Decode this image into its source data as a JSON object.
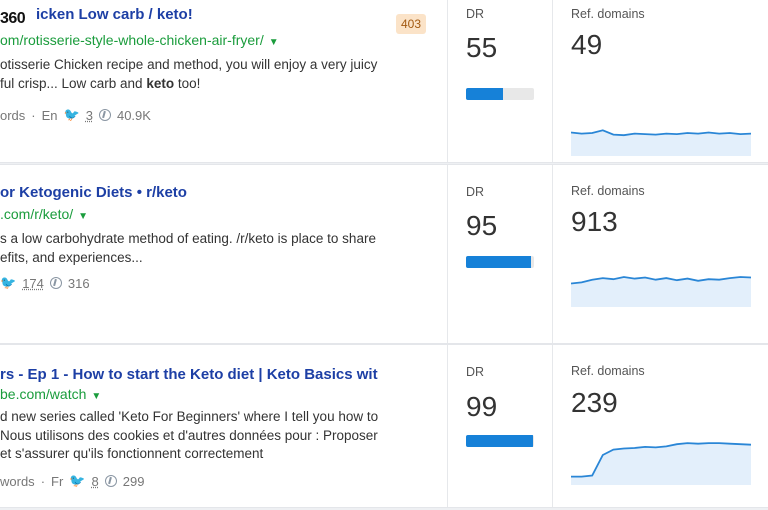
{
  "logo_text": "360",
  "results": [
    {
      "title": "icken Low carb / keto!",
      "url": "om/rotisserie-style-whole-chicken-air-fryer/",
      "snippet_lines": [
        "otisserie Chicken recipe and method, you will enjoy a very juicy",
        "ful crisp... Low carb and keto too!"
      ],
      "meta": {
        "words": "ords",
        "lang": "En",
        "tweets": "3",
        "pins": "40.9K"
      },
      "badge": "403",
      "dr_label": "DR",
      "dr_value": "55",
      "dr_fill": 0.55,
      "ref_label": "Ref. domains",
      "ref_value": "49",
      "spark": [
        0.38,
        0.36,
        0.37,
        0.42,
        0.34,
        0.33,
        0.36,
        0.35,
        0.34,
        0.36,
        0.35,
        0.37,
        0.36,
        0.38,
        0.36,
        0.37,
        0.35,
        0.36
      ]
    },
    {
      "title": "or Ketogenic Diets • r/keto",
      "url": ".com/r/keto/",
      "snippet_lines": [
        "s a low carbohydrate method of eating. /r/keto is place to share",
        "efits, and experiences..."
      ],
      "meta": {
        "words": "",
        "lang": "",
        "tweets": "174",
        "pins": "316"
      },
      "badge": "",
      "dr_label": "DR",
      "dr_value": "95",
      "dr_fill": 0.95,
      "ref_label": "Ref. domains",
      "ref_value": "913",
      "spark": [
        0.38,
        0.4,
        0.45,
        0.48,
        0.46,
        0.5,
        0.47,
        0.49,
        0.45,
        0.48,
        0.44,
        0.47,
        0.43,
        0.46,
        0.45,
        0.48,
        0.5,
        0.49
      ]
    },
    {
      "title": "rs - Ep 1 - How to start the Keto diet | Keto Basics wit",
      "url": "be.com/watch",
      "snippet_lines": [
        "d new series called 'Keto For Beginners' where I tell you how to",
        "Nous utilisons des cookies et d'autres données pour : Proposer",
        "et s'assurer qu'ils fonctionnent correctement"
      ],
      "meta": {
        "words": "words",
        "lang": "Fr",
        "tweets": "8",
        "pins": "299"
      },
      "badge": "",
      "dr_label": "DR",
      "dr_value": "99",
      "dr_fill": 0.99,
      "ref_label": "Ref. domains",
      "ref_value": "239",
      "spark": [
        0.1,
        0.1,
        0.12,
        0.5,
        0.6,
        0.62,
        0.63,
        0.65,
        0.64,
        0.66,
        0.7,
        0.72,
        0.71,
        0.72,
        0.72,
        0.71,
        0.7,
        0.69
      ]
    }
  ]
}
